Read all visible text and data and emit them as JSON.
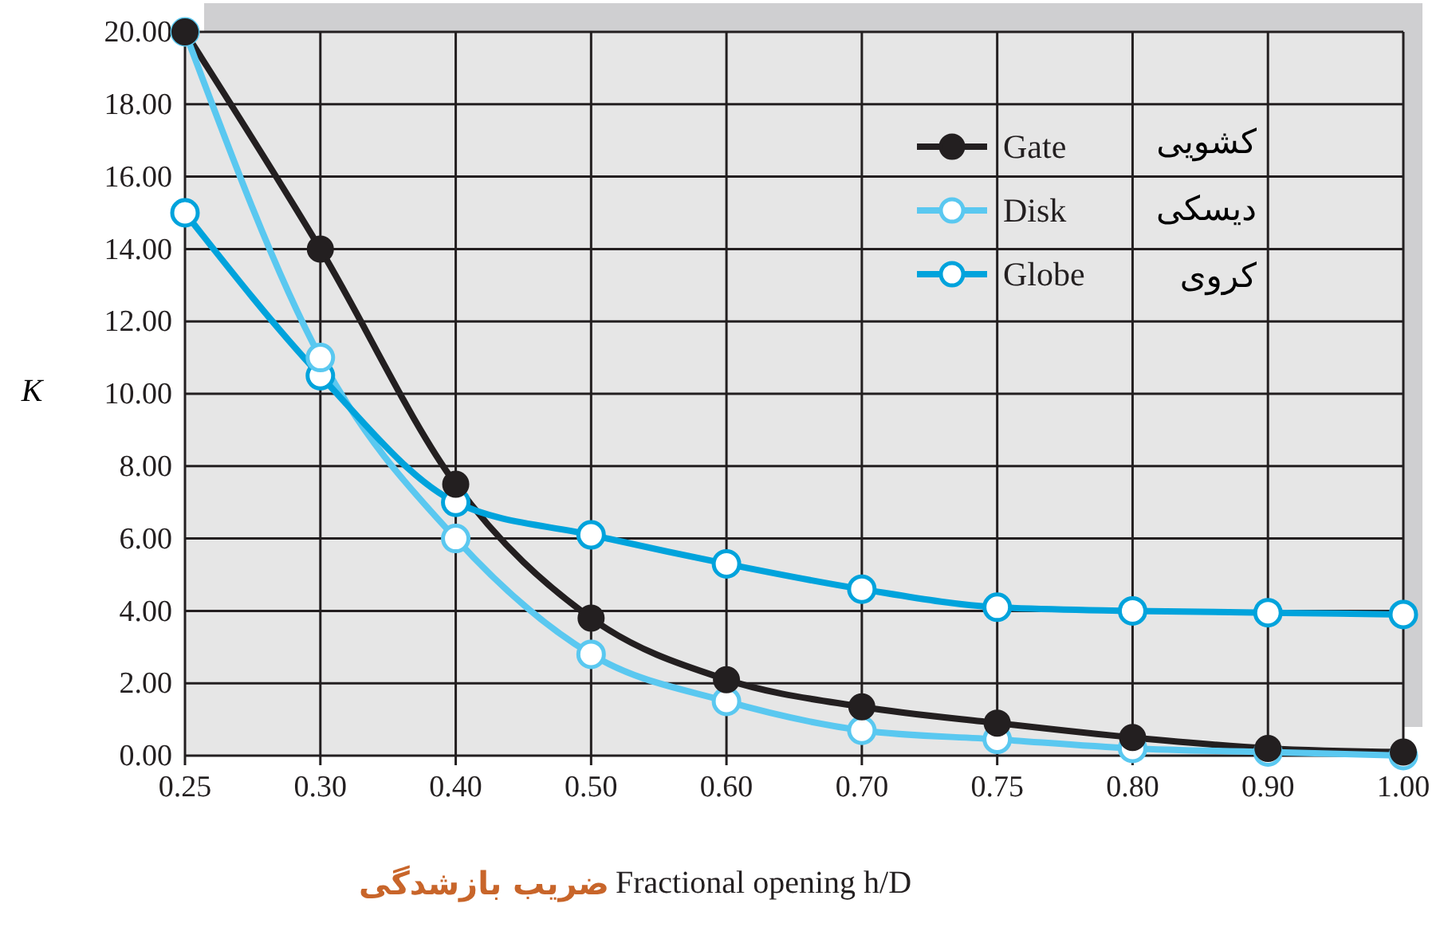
{
  "chart_data": {
    "type": "line",
    "categories": [
      "0.25",
      "0.30",
      "0.40",
      "0.50",
      "0.60",
      "0.70",
      "0.75",
      "0.80",
      "0.90",
      "1.00"
    ],
    "series": [
      {
        "name": "Gate",
        "color": "#231f20",
        "marker": "circle",
        "values": [
          20,
          14,
          7.5,
          3.8,
          2.1,
          1.35,
          0.9,
          0.5,
          0.2,
          0.1
        ]
      },
      {
        "name": "Disk",
        "color": "#5ac8f0",
        "values": [
          20,
          11,
          6,
          2.8,
          1.5,
          0.7,
          0.45,
          0.2,
          0.1,
          0
        ]
      },
      {
        "name": "Globe",
        "color": "#00a3dc",
        "values": [
          15,
          10.5,
          7,
          6.1,
          5.3,
          4.6,
          4.1,
          4.0,
          3.95,
          3.9
        ]
      }
    ],
    "ylabel": "K",
    "xlabel": "Fractional opening h/D",
    "ylim": [
      0,
      20
    ],
    "yticks": [
      {
        "value": 0,
        "label": "0.00"
      },
      {
        "value": 2,
        "label": "2.00"
      },
      {
        "value": 4,
        "label": "4.00"
      },
      {
        "value": 6,
        "label": "6.00"
      },
      {
        "value": 8,
        "label": "8.00"
      },
      {
        "value": 10,
        "label": "10.00"
      },
      {
        "value": 12,
        "label": "12.00"
      },
      {
        "value": 14,
        "label": "14.00"
      },
      {
        "value": 16,
        "label": "16.00"
      },
      {
        "value": 18,
        "label": "18.00"
      },
      {
        "value": 20,
        "label": "20.00"
      }
    ],
    "annotations": [
      "کشویی",
      "دیسکی",
      "کروی",
      "ضریب بازشدگی"
    ],
    "grid": true,
    "legend": "top right",
    "marker": "circle"
  }
}
